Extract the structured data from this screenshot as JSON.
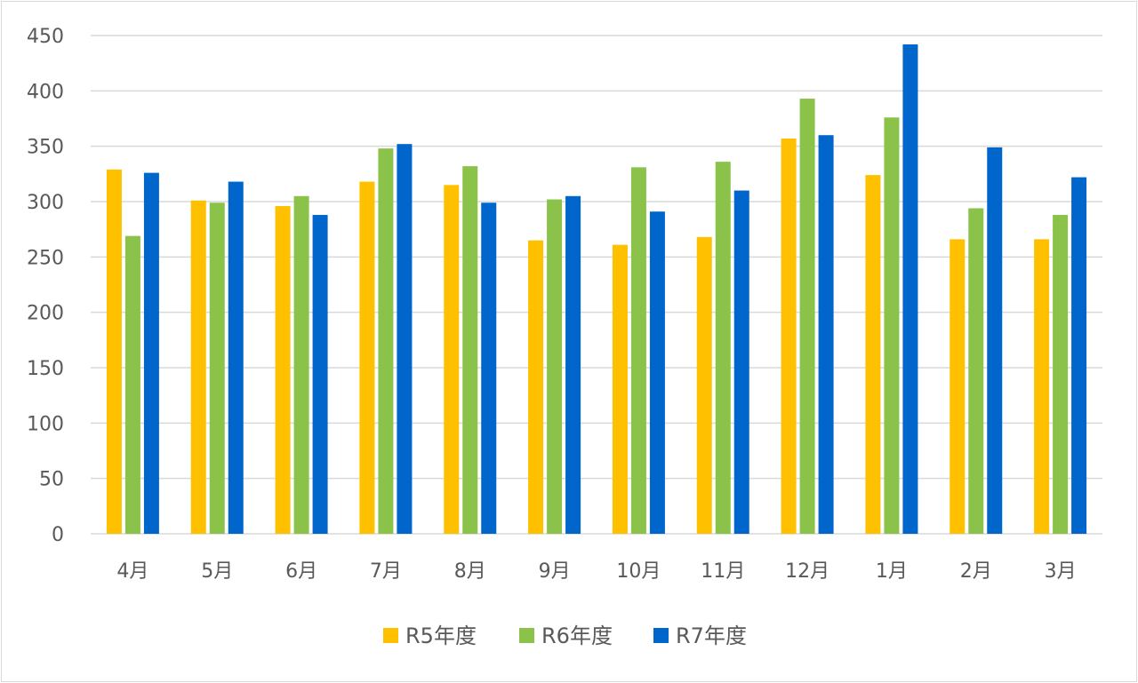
{
  "chart_data": {
    "type": "bar",
    "categories": [
      "4月",
      "5月",
      "6月",
      "7月",
      "8月",
      "9月",
      "10月",
      "11月",
      "12月",
      "1月",
      "2月",
      "3月"
    ],
    "series": [
      {
        "name": "R5年度",
        "color": "#FFC000",
        "values": [
          329,
          301,
          296,
          318,
          315,
          265,
          261,
          268,
          357,
          324,
          266,
          266
        ]
      },
      {
        "name": "R6年度",
        "color": "#8BC34A",
        "values": [
          269,
          299,
          305,
          348,
          332,
          302,
          331,
          336,
          393,
          376,
          294,
          288
        ]
      },
      {
        "name": "R7年度",
        "color": "#0066CC",
        "values": [
          326,
          318,
          288,
          352,
          299,
          305,
          291,
          310,
          360,
          442,
          349,
          322
        ]
      }
    ],
    "yticks": [
      0,
      50,
      100,
      150,
      200,
      250,
      300,
      350,
      400,
      450
    ],
    "ylim": [
      0,
      450
    ],
    "grid": true,
    "legend_position": "bottom"
  }
}
